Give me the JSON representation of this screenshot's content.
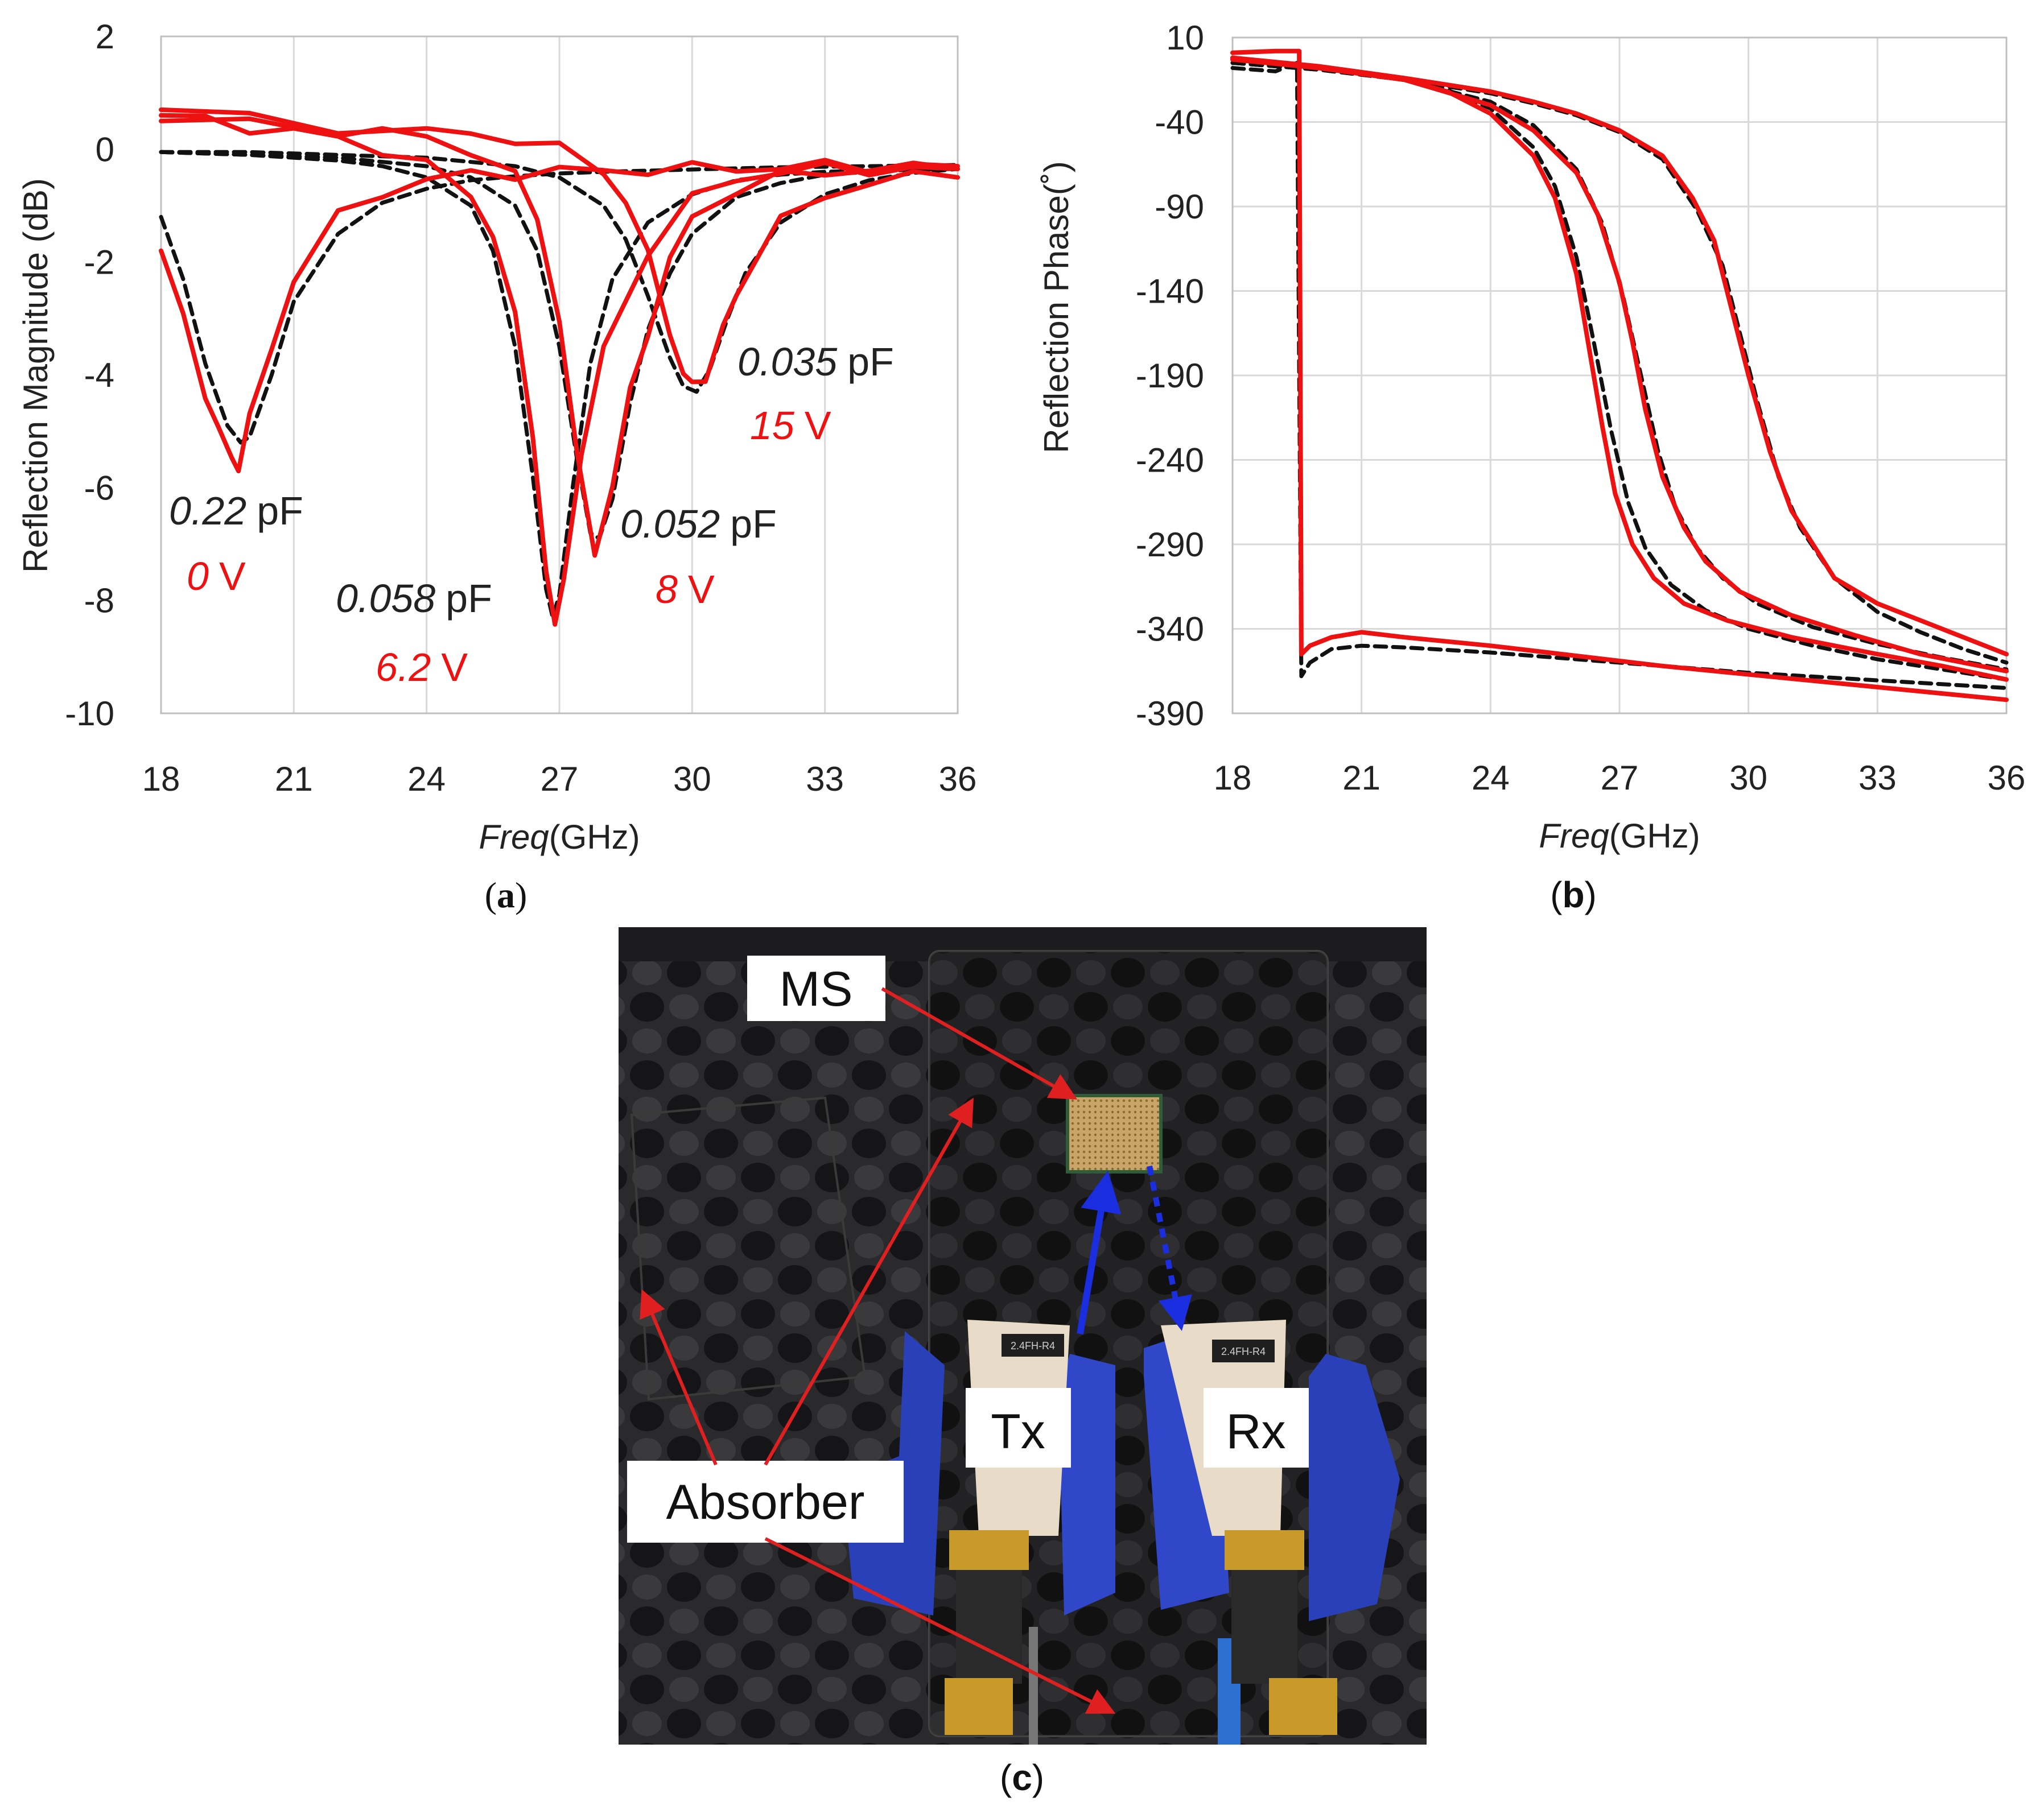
{
  "colors": {
    "measured": "#ee1111",
    "simulated": "#111111",
    "arrow_red": "#e02020",
    "arrow_blue": "#1a2ee0",
    "grid": "#d9d9d9"
  },
  "chart_data": [
    {
      "panel": "(a)",
      "type": "line",
      "xlabel_italic": "Freq",
      "xlabel_unit": "(GHz)",
      "ylabel": "Reflection Magnitude (dB)",
      "xlim": [
        18,
        36
      ],
      "ylim": [
        -10,
        2
      ],
      "xticks": [
        "18",
        "21",
        "24",
        "27",
        "30",
        "33",
        "36"
      ],
      "yticks": [
        "2",
        "0",
        "-2",
        "-4",
        "-6",
        "-8",
        "-10"
      ],
      "grid": "vertical",
      "series": [
        {
          "name": "0 V measured",
          "style": "solid-red",
          "x": [
            18,
            18.5,
            19,
            19.3,
            19.6,
            19.75,
            20,
            20.5,
            21,
            22,
            23,
            24,
            25,
            26,
            27,
            28,
            29,
            30,
            31,
            32,
            33,
            34,
            35,
            36
          ],
          "y": [
            -1.8,
            -3.0,
            -4.3,
            -5.0,
            -5.5,
            -5.6,
            -4.8,
            -3.5,
            -2.3,
            -1.2,
            -0.75,
            -0.55,
            -0.45,
            -0.42,
            -0.4,
            -0.38,
            -0.36,
            -0.35,
            -0.33,
            -0.32,
            -0.3,
            -0.3,
            -0.3,
            -0.3
          ]
        },
        {
          "name": "0 V simulated (0.22 pF)",
          "style": "dashed-black",
          "x": [
            18,
            18.5,
            19,
            19.5,
            19.8,
            20,
            20.5,
            21,
            22,
            23,
            24,
            25,
            26,
            27,
            28,
            29,
            30,
            31,
            32,
            33,
            34,
            35,
            36
          ],
          "y": [
            -1.2,
            -2.3,
            -3.8,
            -4.9,
            -5.2,
            -5.1,
            -4.0,
            -2.7,
            -1.5,
            -0.95,
            -0.7,
            -0.55,
            -0.48,
            -0.43,
            -0.4,
            -0.38,
            -0.36,
            -0.34,
            -0.32,
            -0.31,
            -0.3,
            -0.29,
            -0.28
          ]
        },
        {
          "name": "6.2 V measured",
          "style": "solid-red",
          "x": [
            18,
            19,
            20,
            21,
            22,
            23,
            24,
            25,
            25.5,
            26,
            26.4,
            26.7,
            26.9,
            27.1,
            27.5,
            28,
            29,
            30,
            31,
            32,
            33,
            34,
            35,
            36
          ],
          "y": [
            0.6,
            0.5,
            0.4,
            0.3,
            0.2,
            0.0,
            -0.3,
            -0.8,
            -1.5,
            -3.0,
            -5.0,
            -7.5,
            -8.5,
            -7.5,
            -5.5,
            -3.5,
            -1.8,
            -0.9,
            -0.5,
            -0.4,
            -0.35,
            -0.35,
            -0.35,
            -0.35
          ]
        },
        {
          "name": "6.2 V simulated (0.058 pF)",
          "style": "dashed-black",
          "x": [
            18,
            20,
            22,
            23,
            24,
            25,
            25.5,
            26,
            26.4,
            26.7,
            26.85,
            27,
            27.3,
            27.7,
            28.2,
            29,
            30,
            31,
            32,
            33,
            34,
            35,
            36
          ],
          "y": [
            -0.05,
            -0.1,
            -0.2,
            -0.3,
            -0.5,
            -1.0,
            -1.8,
            -3.5,
            -5.8,
            -7.8,
            -8.3,
            -7.9,
            -6.0,
            -3.8,
            -2.3,
            -1.3,
            -0.8,
            -0.55,
            -0.45,
            -0.4,
            -0.38,
            -0.36,
            -0.35
          ]
        },
        {
          "name": "8 V measured",
          "style": "solid-red",
          "x": [
            18,
            20,
            22,
            23,
            24,
            25,
            26,
            26.5,
            27,
            27.4,
            27.8,
            28.2,
            28.6,
            29,
            29.5,
            30,
            31,
            32,
            33,
            34,
            35,
            36
          ],
          "y": [
            0.5,
            0.45,
            0.35,
            0.3,
            0.2,
            0.0,
            -0.5,
            -1.2,
            -3.0,
            -5.5,
            -7.1,
            -6.0,
            -4.3,
            -3.2,
            -2.0,
            -1.2,
            -0.7,
            -0.5,
            -0.4,
            -0.35,
            -0.35,
            -0.35
          ]
        },
        {
          "name": "8 V simulated (0.052 pF)",
          "style": "dashed-black",
          "x": [
            18,
            20,
            22,
            24,
            25,
            26,
            26.5,
            27,
            27.4,
            27.7,
            27.9,
            28.2,
            28.6,
            29,
            29.5,
            30,
            31,
            32,
            33,
            34,
            35,
            36
          ],
          "y": [
            -0.05,
            -0.1,
            -0.15,
            -0.3,
            -0.5,
            -1.0,
            -1.8,
            -3.5,
            -5.5,
            -6.8,
            -6.9,
            -6.2,
            -4.5,
            -3.2,
            -2.2,
            -1.5,
            -0.85,
            -0.6,
            -0.45,
            -0.4,
            -0.36,
            -0.34
          ]
        },
        {
          "name": "15 V measured",
          "style": "solid-red",
          "x": [
            18,
            20,
            22,
            24,
            25,
            26,
            27,
            28,
            28.5,
            29,
            29.5,
            29.8,
            30,
            30.3,
            30.7,
            31,
            31.5,
            32,
            33,
            34,
            35,
            36
          ],
          "y": [
            0.7,
            0.55,
            0.4,
            0.3,
            0.25,
            0.2,
            0.0,
            -0.4,
            -0.9,
            -1.9,
            -3.2,
            -4.0,
            -4.2,
            -4.0,
            -3.2,
            -2.6,
            -1.8,
            -1.3,
            -0.8,
            -0.6,
            -0.5,
            -0.5
          ]
        },
        {
          "name": "15 V simulated (0.035 pF)",
          "style": "dashed-black",
          "x": [
            18,
            20,
            22,
            24,
            26,
            27,
            28,
            28.5,
            29,
            29.5,
            29.8,
            30.1,
            30.4,
            30.8,
            31.2,
            32,
            33,
            34,
            35,
            36
          ],
          "y": [
            -0.05,
            -0.05,
            -0.1,
            -0.15,
            -0.3,
            -0.5,
            -1.0,
            -1.6,
            -2.6,
            -3.7,
            -4.2,
            -4.3,
            -3.9,
            -3.0,
            -2.2,
            -1.3,
            -0.8,
            -0.55,
            -0.42,
            -0.35
          ]
        }
      ],
      "annotations": [
        {
          "cap_value": "0.22",
          "cap_unit": "pF",
          "volt_value": "0",
          "volt_unit": "V"
        },
        {
          "cap_value": "0.058",
          "cap_unit": "pF",
          "volt_value": "6.2",
          "volt_unit": "V"
        },
        {
          "cap_value": "0.052",
          "cap_unit": "pF",
          "volt_value": "8",
          "volt_unit": "V"
        },
        {
          "cap_value": "0.035",
          "cap_unit": "pF",
          "volt_value": "15",
          "volt_unit": "V"
        }
      ]
    },
    {
      "panel": "(b)",
      "type": "line",
      "xlabel_italic": "Freq",
      "xlabel_unit": "(GHz)",
      "ylabel": "Reflection Phase(˚)",
      "xlim": [
        18,
        36
      ],
      "ylim": [
        -390,
        10
      ],
      "xticks": [
        "18",
        "21",
        "24",
        "27",
        "30",
        "33",
        "36"
      ],
      "yticks": [
        "10",
        "-40",
        "-90",
        "-140",
        "-190",
        "-240",
        "-290",
        "-340",
        "-390"
      ],
      "grid": "both",
      "series": [
        {
          "name": "0 V measured",
          "style": "solid-red",
          "x": [
            18,
            19,
            19.55,
            19.6,
            19.8,
            20.3,
            21,
            22,
            24,
            26,
            28,
            30,
            32,
            34,
            36
          ],
          "y": [
            1,
            2,
            2,
            -355,
            -350,
            -345,
            -342,
            -345,
            -350,
            -356,
            -362,
            -367,
            -372,
            -377,
            -382
          ]
        },
        {
          "name": "0 V simulated",
          "style": "dashed-black",
          "x": [
            18,
            19,
            19.5,
            19.6,
            19.8,
            20.3,
            21,
            22,
            24,
            26,
            28,
            30,
            32,
            34,
            36
          ],
          "y": [
            -8,
            -10,
            -5,
            -368,
            -360,
            -352,
            -350,
            -351,
            -354,
            -358,
            -362,
            -366,
            -369,
            -372,
            -375
          ]
        },
        {
          "name": "6.2 V measured",
          "style": "solid-red",
          "x": [
            18,
            20,
            22,
            23,
            24,
            25,
            25.5,
            26,
            26.3,
            26.6,
            26.9,
            27.3,
            27.8,
            28.5,
            29.5,
            31,
            33,
            34.5,
            36
          ],
          "y": [
            -3,
            -8,
            -15,
            -22,
            -35,
            -60,
            -85,
            -130,
            -175,
            -220,
            -260,
            -290,
            -310,
            -325,
            -335,
            -345,
            -355,
            -362,
            -370
          ]
        },
        {
          "name": "6.2 V simulated",
          "style": "dashed-black",
          "x": [
            18,
            20,
            22,
            23,
            24,
            25,
            25.5,
            26,
            26.4,
            26.8,
            27.2,
            27.6,
            28.2,
            29,
            30,
            31.5,
            33,
            34.5,
            36
          ],
          "y": [
            -5,
            -9,
            -15,
            -21,
            -32,
            -55,
            -78,
            -120,
            -170,
            -222,
            -265,
            -292,
            -314,
            -329,
            -340,
            -350,
            -358,
            -364,
            -370
          ]
        },
        {
          "name": "8 V measured",
          "style": "solid-red",
          "x": [
            18,
            20,
            22,
            24,
            25,
            26,
            26.5,
            27,
            27.3,
            27.6,
            28,
            28.5,
            29,
            29.8,
            31,
            32.5,
            34,
            36
          ],
          "y": [
            -2,
            -8,
            -15,
            -30,
            -45,
            -70,
            -95,
            -135,
            -170,
            -210,
            -250,
            -280,
            -300,
            -318,
            -332,
            -344,
            -355,
            -365
          ]
        },
        {
          "name": "8 V simulated",
          "style": "dashed-black",
          "x": [
            18,
            20,
            22,
            24,
            25,
            26,
            26.6,
            27.1,
            27.5,
            27.9,
            28.3,
            28.8,
            29.4,
            30.2,
            31.5,
            33,
            34.5,
            36
          ],
          "y": [
            -5,
            -9,
            -15,
            -28,
            -42,
            -68,
            -100,
            -145,
            -190,
            -235,
            -268,
            -292,
            -310,
            -325,
            -339,
            -349,
            -357,
            -364
          ]
        },
        {
          "name": "15 V measured",
          "style": "solid-red",
          "x": [
            18,
            20,
            22,
            24,
            25,
            26,
            27,
            28,
            28.7,
            29.2,
            29.6,
            30,
            30.5,
            31,
            32,
            33,
            34,
            35,
            36
          ],
          "y": [
            -2,
            -7,
            -14,
            -22,
            -28,
            -35,
            -45,
            -60,
            -85,
            -110,
            -150,
            -190,
            -235,
            -270,
            -310,
            -325,
            -335,
            -345,
            -355
          ]
        },
        {
          "name": "15 V simulated",
          "style": "dashed-black",
          "x": [
            18,
            20,
            22,
            24,
            25,
            26,
            27,
            28,
            28.8,
            29.4,
            29.8,
            30.2,
            30.7,
            31.2,
            32,
            33,
            34,
            35,
            36
          ],
          "y": [
            -5,
            -9,
            -15,
            -23,
            -29,
            -36,
            -46,
            -62,
            -92,
            -125,
            -165,
            -205,
            -250,
            -280,
            -310,
            -330,
            -342,
            -352,
            -360
          ]
        }
      ]
    }
  ],
  "captions": {
    "a": "(a)",
    "b": "(b)",
    "c": "(c)"
  },
  "photo": {
    "labels": {
      "ms": "MS",
      "absorber": "Absorber",
      "tx": "Tx",
      "rx": "Rx"
    },
    "horn_plate_text": "2.4FH-R4"
  }
}
